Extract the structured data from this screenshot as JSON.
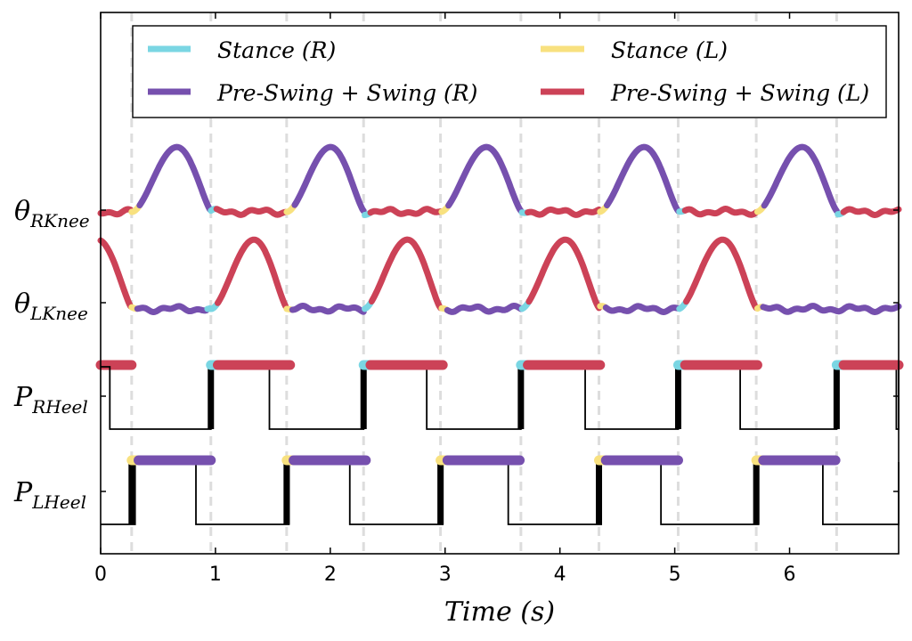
{
  "chart_data": {
    "type": "line",
    "xlabel": "Time (s)",
    "xlim": [
      0,
      6.95
    ],
    "x_ticks": [
      "0",
      "1",
      "2",
      "3",
      "4",
      "5",
      "6"
    ],
    "x_tick_values": [
      0,
      1,
      2,
      3,
      4,
      5,
      6
    ],
    "grid": false,
    "legend_position": "top",
    "legend": [
      {
        "name": "Stance (R)",
        "color": "#7ad6e3"
      },
      {
        "name": "Stance (L)",
        "color": "#f8e17f"
      },
      {
        "name": "Pre-Swing + Swing (R)",
        "color": "#7650ae"
      },
      {
        "name": "Pre-Swing + Swing (L)",
        "color": "#cc4257"
      }
    ],
    "phase_lines_s": [
      0.27,
      0.96,
      1.62,
      2.29,
      2.96,
      3.66,
      4.34,
      5.03,
      5.71,
      6.41
    ],
    "right_stance_start_s": [
      0.96,
      2.29,
      3.66,
      5.03,
      6.41
    ],
    "left_stance_start_s": [
      0.27,
      1.62,
      2.96,
      4.34,
      5.71
    ],
    "series": [
      {
        "name": "θ_RKnee",
        "label_base": "θ",
        "label_sub": "RKnee",
        "kind": "knee_right"
      },
      {
        "name": "θ_LKnee",
        "label_base": "θ",
        "label_sub": "LKnee",
        "kind": "knee_left"
      },
      {
        "name": "P_RHeel",
        "label_base": "P",
        "label_sub": "RHeel",
        "kind": "heel_right",
        "low_intervals_s": [
          [
            0.08,
            0.96
          ],
          [
            1.47,
            2.29
          ],
          [
            2.84,
            3.66
          ],
          [
            4.22,
            5.03
          ],
          [
            5.57,
            6.41
          ],
          [
            6.93,
            6.95
          ]
        ]
      },
      {
        "name": "P_LHeel",
        "label_base": "P",
        "label_sub": "LHeel",
        "kind": "heel_left",
        "low_intervals_s": [
          [
            0,
            0.3
          ],
          [
            0.83,
            1.64
          ],
          [
            2.17,
            2.98
          ],
          [
            3.55,
            4.36
          ],
          [
            4.88,
            5.73
          ],
          [
            6.29,
            6.95
          ]
        ]
      }
    ]
  }
}
